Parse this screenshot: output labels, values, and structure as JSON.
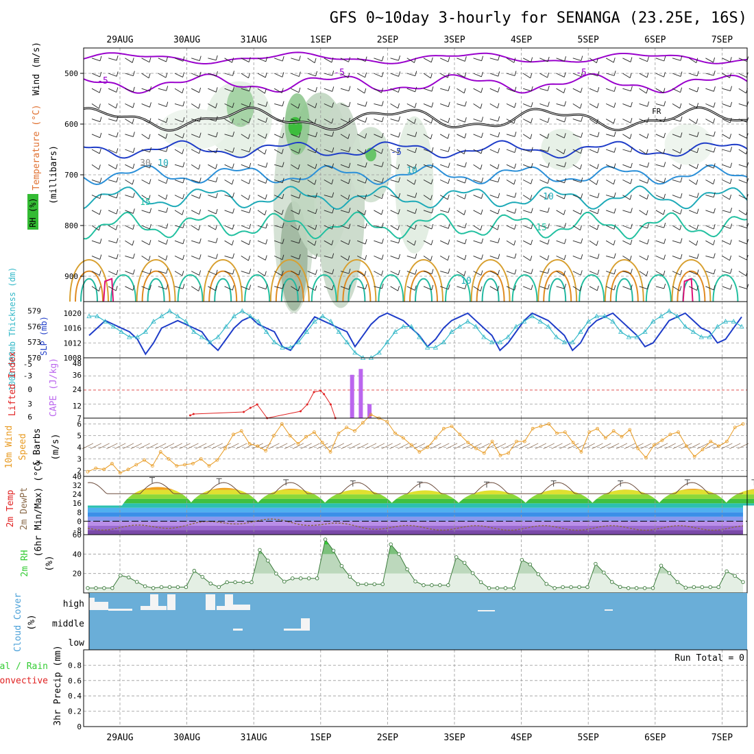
{
  "title": "GFS 0~10day 3-hourly for SENANGA (23.25E, 16S)",
  "dates": [
    "29AUG",
    "30AUG",
    "31AUG",
    "1SEP",
    "2SEP",
    "3SEP",
    "4SEP",
    "5SEP",
    "6SEP",
    "7SEP"
  ],
  "colors": {
    "axis": "#000000",
    "grid": "#999999",
    "temperature": "#9900cc",
    "slp": "#1e3cc8",
    "thickness": "#33b8c8",
    "lifted_index": "#e02020",
    "cape": "#bb66ee",
    "wind10m": "#e89a20",
    "rh": "#33cc33",
    "cloud": "#6aaed8",
    "dewpt": "#8a6a4a"
  },
  "labels": {
    "wind": "Wind (m/s)",
    "temperature": "Temperature (°C)",
    "millibars": "(millibars)",
    "rh_upper": "RH (%)",
    "thickness": "1000-500mb Thickness (dm)",
    "slp": "SLP (mb)",
    "lifted": "Lifted Index",
    "cape": "CAPE (J/kg)",
    "wind10m": "10m Wind",
    "speed": "Speed",
    "barbs": "& Barbs",
    "ms": "(m/s)",
    "temp2m": "2m Temp",
    "dewpt": "2m DewPt",
    "minmax": "(6hr Min/Max) (°C)",
    "rh2m": "2m RH",
    "pct": "(%)",
    "cloud": "Cloud Cover",
    "cloud_pct": "(%)",
    "precip_total": "Total / Rain",
    "precip_conv": "Convective",
    "precip_mm": "3hr Precip (mm)",
    "run_total": "Run Total = 0",
    "fr": "FR"
  },
  "contour_labels": [
    "-5",
    "-5",
    "-5",
    "-5",
    "10",
    "10",
    "15",
    "15",
    "10",
    "10",
    "30"
  ],
  "cloud_levels": [
    "high",
    "middle",
    "low"
  ],
  "chart_data": [
    {
      "type": "heatmap",
      "name": "upper-air",
      "yticks": [
        500,
        600,
        700,
        800,
        900
      ],
      "ylim": [
        450,
        950
      ],
      "temperature_contours": [
        -5,
        5,
        10,
        15,
        20,
        25,
        30
      ],
      "freezing_level_label": "FR"
    },
    {
      "type": "line",
      "name": "slp-thickness",
      "yticks_left": [
        570,
        573,
        576,
        579
      ],
      "yticks_right": [
        1008,
        1012,
        1016,
        1020
      ],
      "series": [
        {
          "name": "SLP",
          "values": [
            1014,
            1016,
            1018,
            1017,
            1016,
            1015,
            1013,
            1009,
            1012,
            1016,
            1017,
            1018,
            1017,
            1016,
            1015,
            1012,
            1010,
            1013,
            1016,
            1018,
            1019,
            1017,
            1016,
            1015,
            1011,
            1010,
            1013,
            1016,
            1019,
            1018,
            1017,
            1016,
            1015,
            1011,
            1014,
            1017,
            1019,
            1020,
            1019,
            1018,
            1016,
            1014,
            1011,
            1013,
            1016,
            1018,
            1019,
            1020,
            1018,
            1016,
            1014,
            1010,
            1012,
            1015,
            1018,
            1020,
            1019,
            1018,
            1016,
            1014,
            1010,
            1012,
            1016,
            1018,
            1019,
            1020,
            1018,
            1016,
            1014,
            1011,
            1012,
            1015,
            1018,
            1019,
            1020,
            1018,
            1016,
            1015,
            1012,
            1013,
            1016,
            1019
          ]
        },
        {
          "name": "Thickness",
          "values": [
            578,
            578,
            577,
            576,
            575,
            574,
            574,
            575,
            577,
            578,
            579,
            578,
            577,
            575,
            574,
            573,
            574,
            576,
            578,
            579,
            578,
            577,
            575,
            573,
            572,
            572,
            573,
            575,
            577,
            578,
            577,
            575,
            573,
            571,
            570,
            570,
            571,
            573,
            575,
            576,
            576,
            574,
            572,
            572,
            573,
            575,
            576,
            577,
            576,
            574,
            573,
            573,
            574,
            576,
            577,
            578,
            577,
            576,
            574,
            573,
            573,
            575,
            577,
            578,
            578,
            577,
            575,
            574,
            574,
            575,
            577,
            578,
            579,
            578,
            576,
            575,
            574,
            574,
            576,
            577,
            577,
            576
          ]
        }
      ]
    },
    {
      "type": "bar",
      "name": "li-cape",
      "yticks_left": [
        6,
        3,
        0,
        -3,
        -5
      ],
      "yticks_right": [
        7,
        12,
        24,
        36,
        48
      ],
      "cape_bars": [
        {
          "x": 3.47,
          "value": 37
        },
        {
          "x": 3.6,
          "value": 42
        },
        {
          "x": 3.73,
          "value": 12
        }
      ]
    },
    {
      "type": "line",
      "name": "wind10m",
      "yticks": [
        2,
        3,
        4,
        5,
        6
      ],
      "ylim": [
        1.5,
        6.5
      ],
      "values": [
        1.9,
        2.2,
        2.1,
        2.6,
        1.8,
        2.1,
        2.5,
        2.9,
        2.4,
        3.6,
        3.0,
        2.4,
        2.5,
        2.6,
        3.0,
        2.4,
        2.9,
        3.9,
        5.1,
        5.4,
        4.3,
        4.1,
        3.7,
        5.0,
        6.0,
        5.0,
        4.3,
        4.9,
        5.3,
        4.4,
        3.6,
        5.2,
        5.7,
        5.4,
        6.1,
        6.8,
        6.5,
        6.2,
        5.2,
        4.8,
        4.2,
        3.6,
        4.0,
        4.8,
        5.6,
        5.8,
        5.1,
        4.4,
        3.9,
        3.5,
        4.5,
        3.3,
        3.5,
        4.5,
        4.5,
        5.6,
        5.8,
        6.0,
        5.2,
        5.3,
        4.4,
        3.6,
        5.3,
        5.6,
        4.8,
        5.4,
        4.9,
        5.5,
        3.9,
        3.1,
        4.2,
        4.6,
        5.1,
        5.3,
        4.1,
        3.2,
        3.8,
        4.5,
        4.1,
        4.5,
        5.7,
        6.0
      ]
    },
    {
      "type": "area",
      "name": "temp2m",
      "yticks": [
        40,
        32,
        24,
        16,
        8,
        0,
        -8
      ],
      "ylim": [
        -12,
        40
      ],
      "daily_max": [
        36,
        35,
        34,
        33,
        32,
        32,
        33,
        33,
        34,
        34
      ],
      "daily_min": [
        15,
        15,
        14,
        15,
        15,
        14,
        15,
        15,
        15,
        15
      ]
    },
    {
      "type": "area",
      "name": "rh2m",
      "yticks": [
        20,
        40,
        60
      ],
      "ylim": [
        0,
        60
      ],
      "daily_max": [
        18,
        25,
        47,
        57,
        51,
        37,
        34,
        33,
        30,
        23
      ],
      "daily_min": [
        5,
        6,
        11,
        15,
        9,
        8,
        5,
        6,
        5,
        6
      ]
    },
    {
      "type": "heatmap",
      "name": "cloud-cover",
      "levels": [
        "high",
        "middle",
        "low"
      ]
    },
    {
      "type": "bar",
      "name": "precip",
      "yticks": [
        0,
        0.2,
        0.4,
        0.6,
        0.8
      ],
      "ylim": [
        0,
        1
      ],
      "values": []
    }
  ]
}
